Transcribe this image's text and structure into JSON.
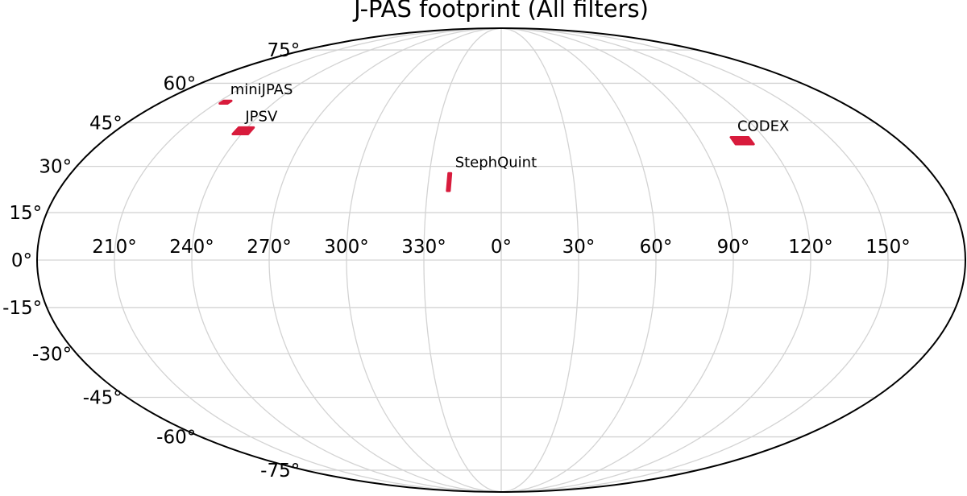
{
  "chart_data": {
    "type": "scatter",
    "projection": "mollweide",
    "title": "J-PAS footprint (All filters)",
    "grid": true,
    "lon_ticks": [
      150,
      120,
      90,
      60,
      30,
      0,
      330,
      300,
      270,
      240,
      210
    ],
    "lon_tick_labels": [
      "150°",
      "120°",
      "90°",
      "60°",
      "30°",
      "0°",
      "330°",
      "300°",
      "270°",
      "240°",
      "210°"
    ],
    "lat_ticks": [
      75,
      60,
      45,
      30,
      15,
      0,
      -15,
      -30,
      -45,
      -60,
      -75
    ],
    "lat_tick_labels": [
      "75°",
      "60°",
      "45°",
      "30°",
      "15°",
      "0°",
      "-15°",
      "-30°",
      "-45°",
      "-60°",
      "-75°"
    ],
    "footprint_color": "#d81b3c",
    "fields": [
      {
        "name": "miniJPAS",
        "ra": [
          216,
          212
        ],
        "dec": [
          52.1,
          53.1
        ]
      },
      {
        "name": "JPSV",
        "ra": [
          243,
          236
        ],
        "dec": [
          41.0,
          43.3
        ]
      },
      {
        "name": "StephQuint",
        "ra": [
          339,
          338
        ],
        "dec": [
          22.0,
          27.7
        ]
      },
      {
        "name": "CODEX",
        "ra": [
          113,
          105
        ],
        "dec": [
          37.5,
          39.9
        ]
      }
    ]
  }
}
